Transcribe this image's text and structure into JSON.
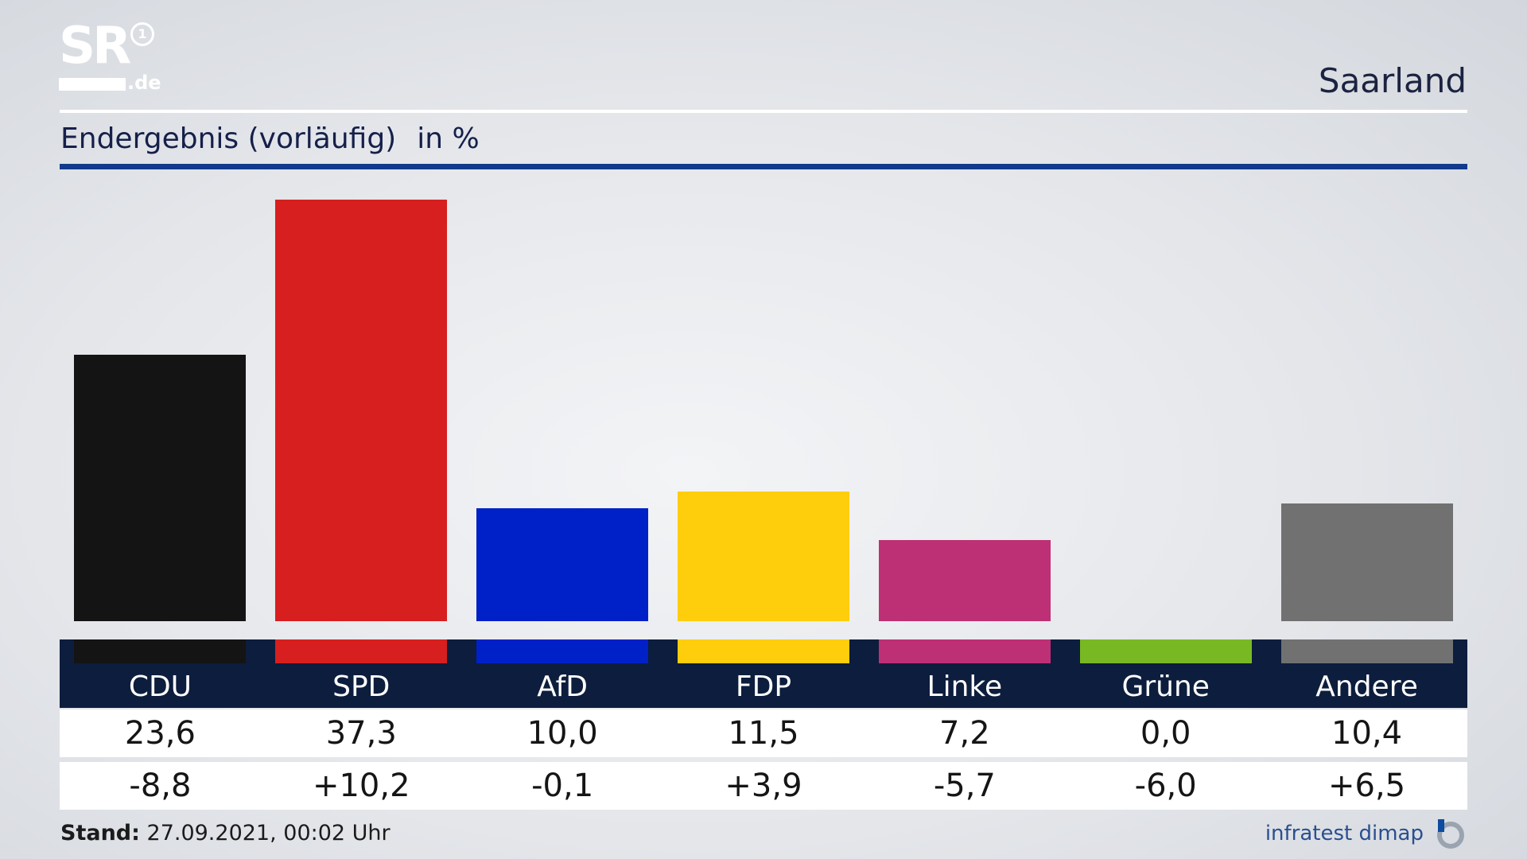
{
  "header": {
    "logo_text": "SR",
    "logo_suffix": ".de",
    "logo_badge": "1",
    "region": "Saarland",
    "subtitle": "Endergebnis (vorläufig)",
    "unit": "in %"
  },
  "chart_data": {
    "type": "bar",
    "categories": [
      "CDU",
      "SPD",
      "AfD",
      "FDP",
      "Linke",
      "Grüne",
      "Andere"
    ],
    "values": [
      23.6,
      37.3,
      10.0,
      11.5,
      7.2,
      0.0,
      10.4
    ],
    "value_labels": [
      "23,6",
      "37,3",
      "10,0",
      "11,5",
      "7,2",
      "0,0",
      "10,4"
    ],
    "change_labels": [
      "-8,8",
      "+10,2",
      "-0,1",
      "+3,9",
      "-5,7",
      "-6,0",
      "+6,5"
    ],
    "changes": [
      -8.8,
      10.2,
      -0.1,
      3.9,
      -5.7,
      -6.0,
      6.5
    ],
    "colors": [
      "#141414",
      "#d71f1f",
      "#0021c8",
      "#fecd0c",
      "#be3075",
      "#78b923",
      "#717171"
    ],
    "title": "Endergebnis (vorläufig)",
    "ylabel": "in %",
    "ylim": [
      0,
      37.3
    ],
    "grid": false
  },
  "footer": {
    "stand_label": "Stand:",
    "stand_value": "27.09.2021, 00:02 Uhr",
    "source": "infratest dimap"
  }
}
